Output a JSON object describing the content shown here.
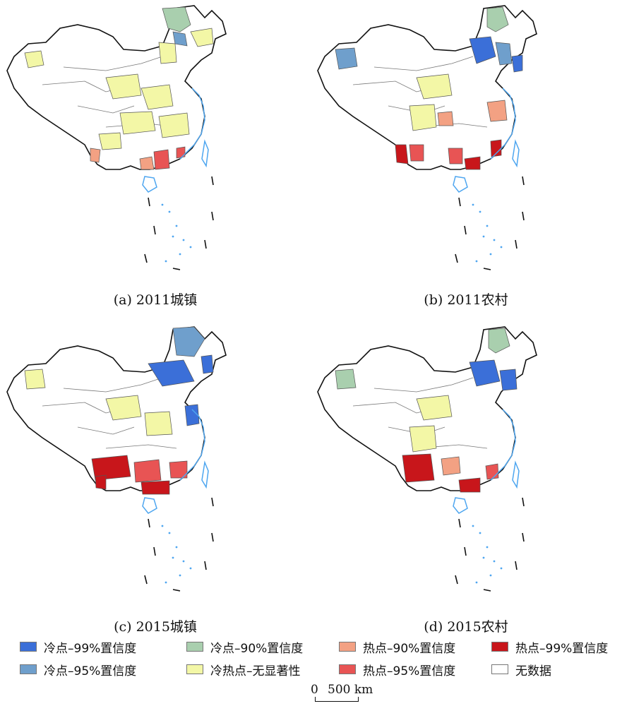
{
  "panels": [
    {
      "caption": "(a) 2011城镇"
    },
    {
      "caption": "(b) 2011农村"
    },
    {
      "caption": "(c) 2015城镇"
    },
    {
      "caption": "(d) 2015农村"
    }
  ],
  "legend": [
    {
      "label": "冷点–99%置信度",
      "color": "#3b6fd8"
    },
    {
      "label": "冷点–95%置信度",
      "color": "#6f9fcc"
    },
    {
      "label": "冷点–90%置信度",
      "color": "#a9cfae"
    },
    {
      "label": "冷热点–无显著性",
      "color": "#f3f7a6"
    },
    {
      "label": "热点–90%置信度",
      "color": "#f3a183"
    },
    {
      "label": "热点–95%置信度",
      "color": "#e85454"
    },
    {
      "label": "热点–99%置信度",
      "color": "#c8161b"
    },
    {
      "label": "无数据",
      "color": "#ffffff"
    }
  ],
  "scale_bar": {
    "zero": "0",
    "distance": "500 km"
  },
  "colors": {
    "coast": "#4ea6f0",
    "border": "#111111",
    "internal": "#666666"
  }
}
